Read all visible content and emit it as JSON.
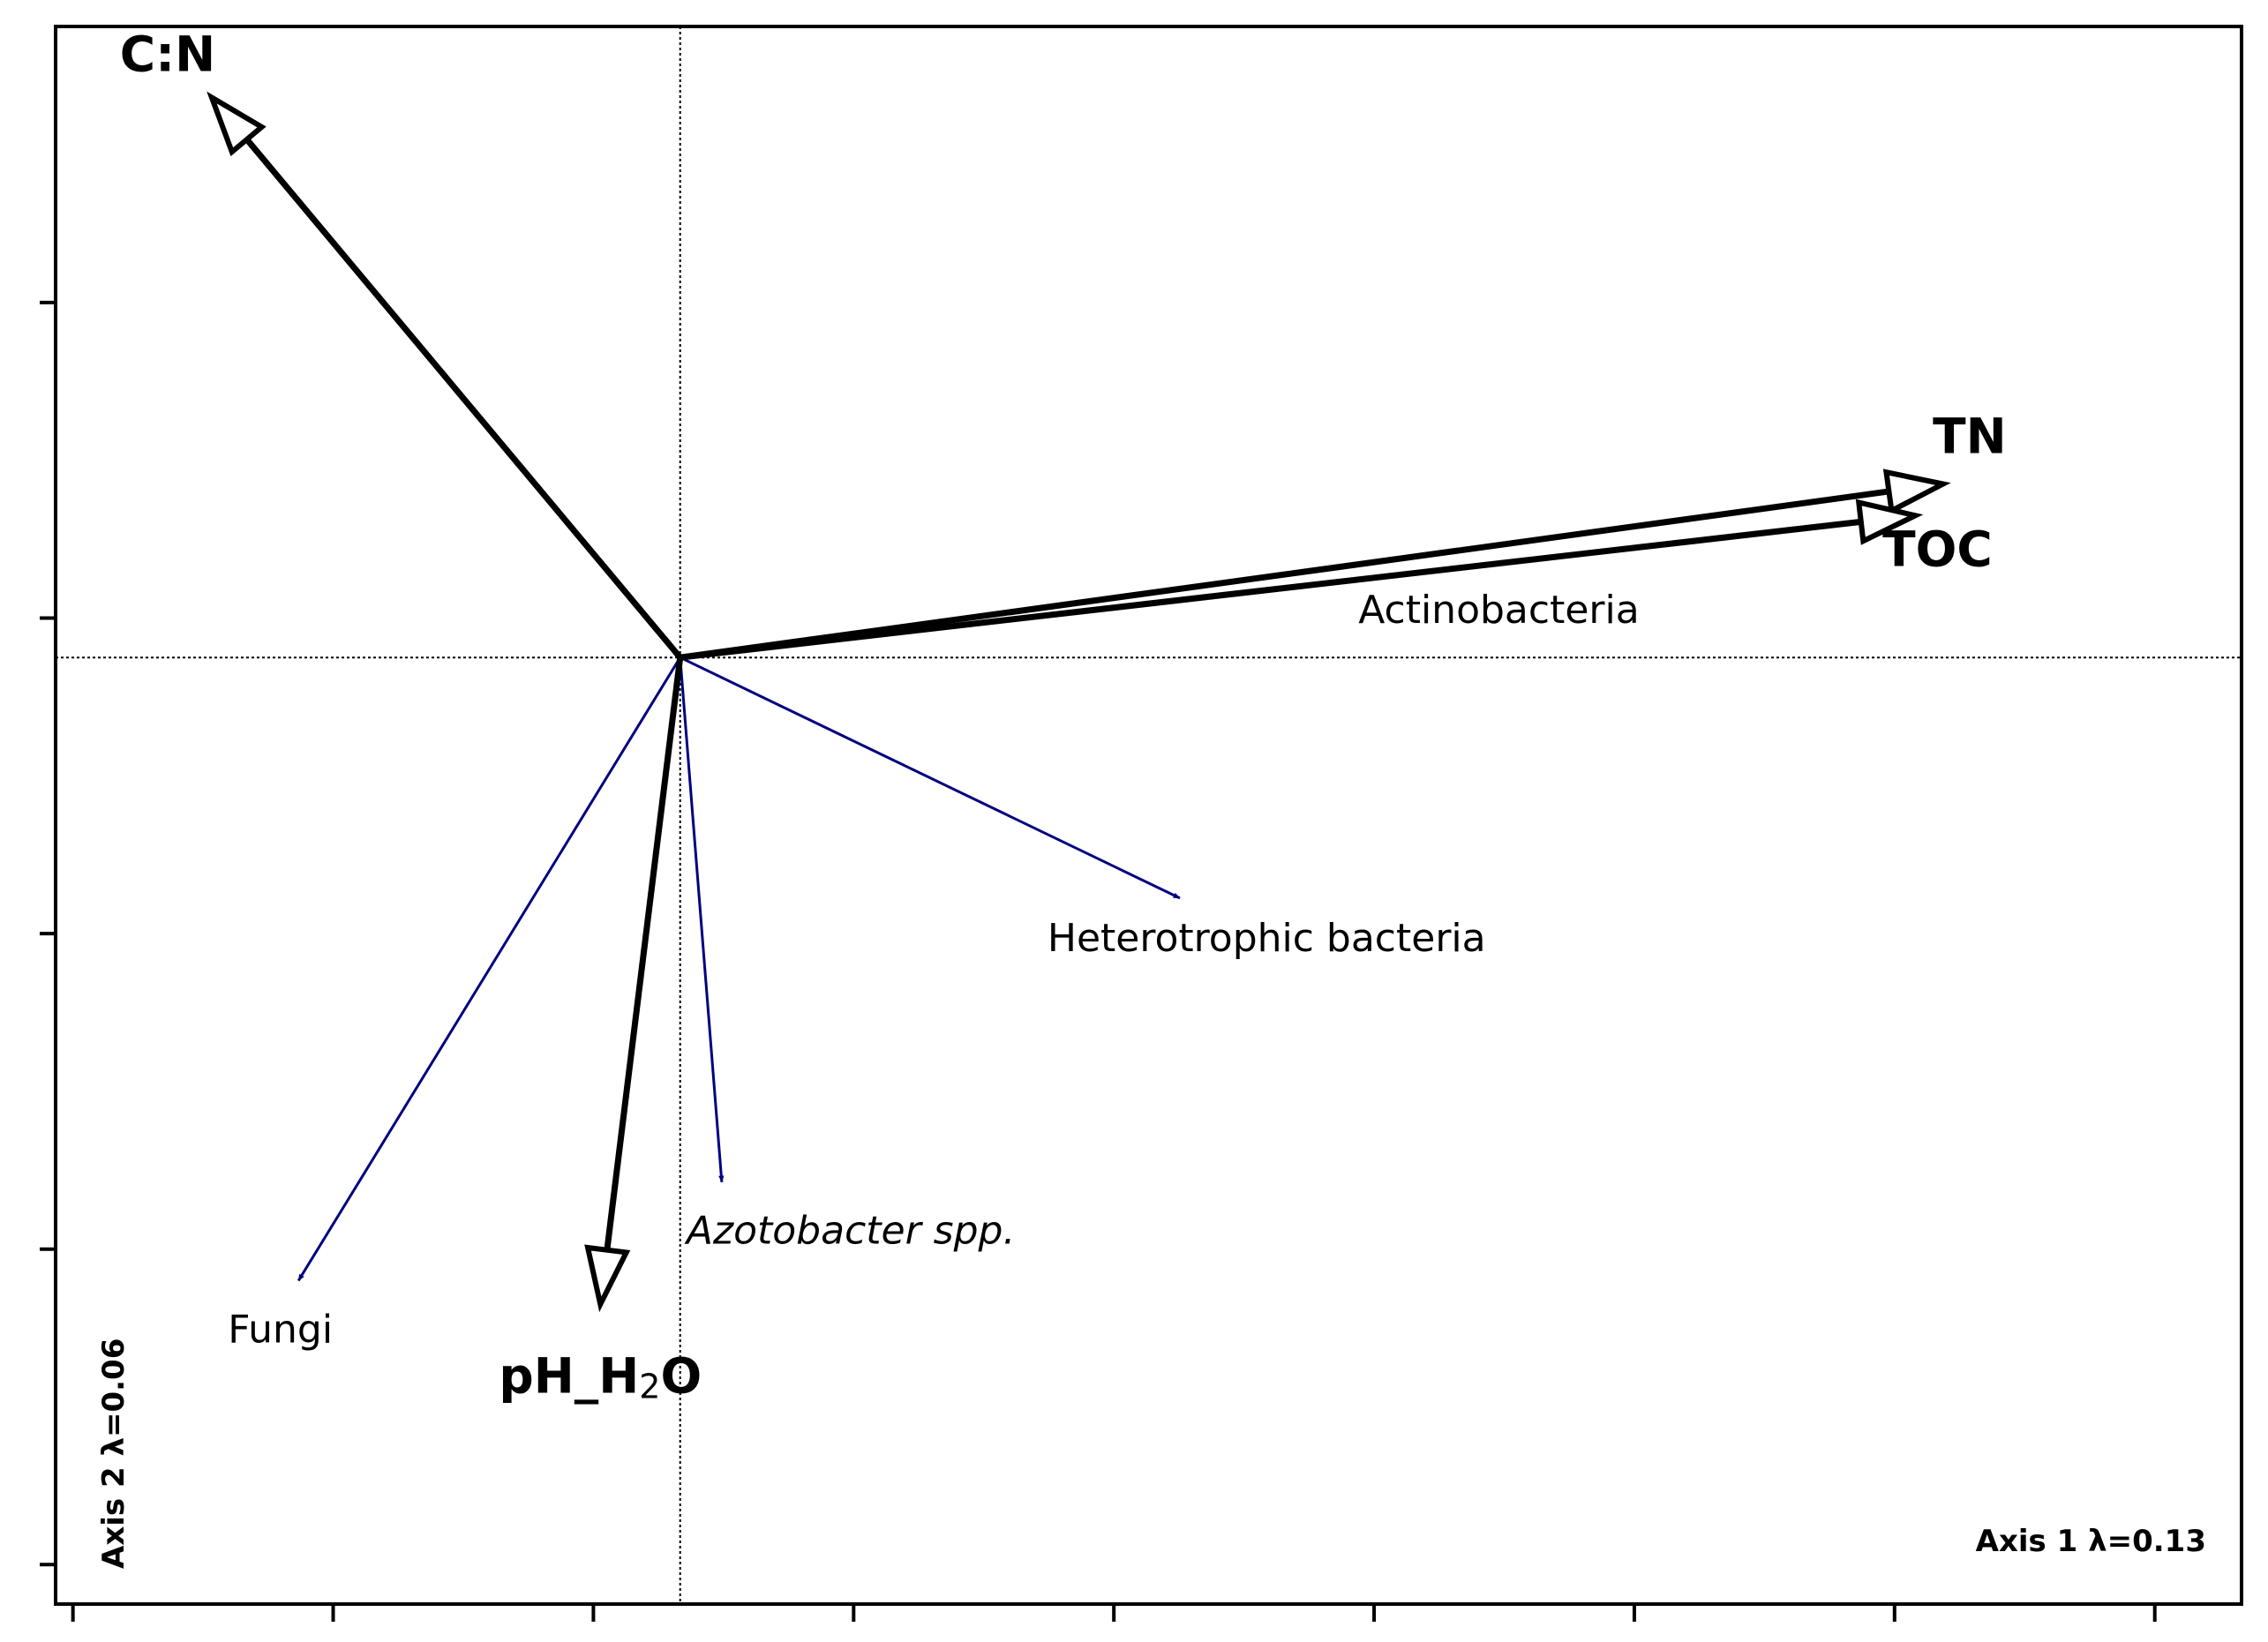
{
  "chart_data": {
    "type": "biplot",
    "xlabel": "Axis 1 λ=0.13",
    "ylabel": "Axis 2 λ=0.06",
    "xlim": [
      -0.9,
      2.25
    ],
    "ylim": [
      -1.2,
      0.8
    ],
    "x_ticks": [
      -0.875,
      -0.5,
      -0.125,
      0.25,
      0.625,
      1.0,
      1.375,
      1.75,
      2.125
    ],
    "y_ticks": [
      -1.15,
      -0.75,
      -0.35,
      0.05,
      0.45,
      0.85
    ],
    "grid": false,
    "reference_lines": {
      "x": 0,
      "y": 0
    },
    "environmental_vectors": [
      {
        "name": "C:N",
        "x": -0.675,
        "y": 0.71,
        "color": "#000000"
      },
      {
        "name": "TN",
        "x": 1.82,
        "y": 0.22,
        "color": "#000000"
      },
      {
        "name": "TOC",
        "x": 1.78,
        "y": 0.18,
        "color": "#000000"
      },
      {
        "name": "pH_",
        "name_sub": "2",
        "name_parts": [
          "pH_H",
          "O"
        ],
        "x": -0.115,
        "y": -0.82,
        "color": "#000000"
      }
    ],
    "species_vectors": [
      {
        "name": "Actinobacteria",
        "x": 0.99,
        "y": 0.1,
        "color": "#000080",
        "italic": false
      },
      {
        "name": "Heterotrophic bacteria",
        "x": 0.72,
        "y": -0.305,
        "color": "#000080",
        "italic": false
      },
      {
        "name": "Azotobacter spp.",
        "x": 0.06,
        "y": -0.665,
        "color": "#000080",
        "italic": true
      },
      {
        "name": "Fungi",
        "x": -0.55,
        "y": -0.79,
        "color": "#000080",
        "italic": false
      }
    ]
  }
}
